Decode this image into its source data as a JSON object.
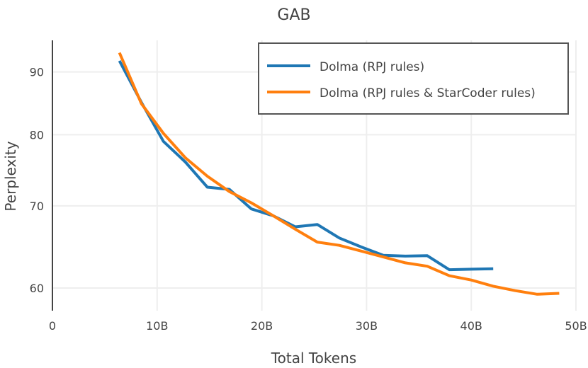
{
  "chart_data": {
    "type": "line",
    "title": "GAB",
    "xlabel": "Total Tokens",
    "ylabel": "Perplexity",
    "xlim": [
      0,
      50
    ],
    "ylim": [
      57.5,
      95.5
    ],
    "y_scale": "log",
    "grid": true,
    "legend_position": "top-right",
    "x_ticks": [
      {
        "value": 0,
        "label": "0"
      },
      {
        "value": 10,
        "label": "10B"
      },
      {
        "value": 20,
        "label": "20B"
      },
      {
        "value": 30,
        "label": "30B"
      },
      {
        "value": 40,
        "label": "40B"
      },
      {
        "value": 50,
        "label": "50B"
      }
    ],
    "y_ticks": [
      {
        "value": 60,
        "label": "60"
      },
      {
        "value": 70,
        "label": "70"
      },
      {
        "value": 80,
        "label": "80"
      },
      {
        "value": 90,
        "label": "90"
      }
    ],
    "series": [
      {
        "name": "Dolma (RPJ rules)",
        "color": "#1f77b4",
        "x": [
          6.4,
          8.5,
          10.6,
          12.7,
          14.8,
          16.9,
          19.0,
          21.1,
          23.2,
          25.3,
          27.4,
          29.5,
          31.6,
          33.7,
          35.8,
          37.9,
          40.0,
          42.1
        ],
        "y": [
          91.9,
          85.0,
          79.0,
          76.0,
          72.5,
          72.2,
          69.6,
          68.7,
          67.3,
          67.6,
          65.9,
          64.8,
          63.8,
          63.7,
          63.75,
          62.1,
          62.15,
          62.2
        ]
      },
      {
        "name": "Dolma (RPJ rules & StarCoder rules)",
        "color": "#ff7f0e",
        "x": [
          6.4,
          8.5,
          10.6,
          12.7,
          14.8,
          16.9,
          19.0,
          21.1,
          23.2,
          25.3,
          27.4,
          29.5,
          31.6,
          33.7,
          35.8,
          37.9,
          40.0,
          42.1,
          44.2,
          46.3,
          48.4
        ],
        "y": [
          93.3,
          84.8,
          80.2,
          76.6,
          74.0,
          71.9,
          70.4,
          68.7,
          67.0,
          65.4,
          65.0,
          64.3,
          63.6,
          62.9,
          62.5,
          61.4,
          60.9,
          60.2,
          59.7,
          59.3,
          59.4
        ]
      }
    ]
  }
}
